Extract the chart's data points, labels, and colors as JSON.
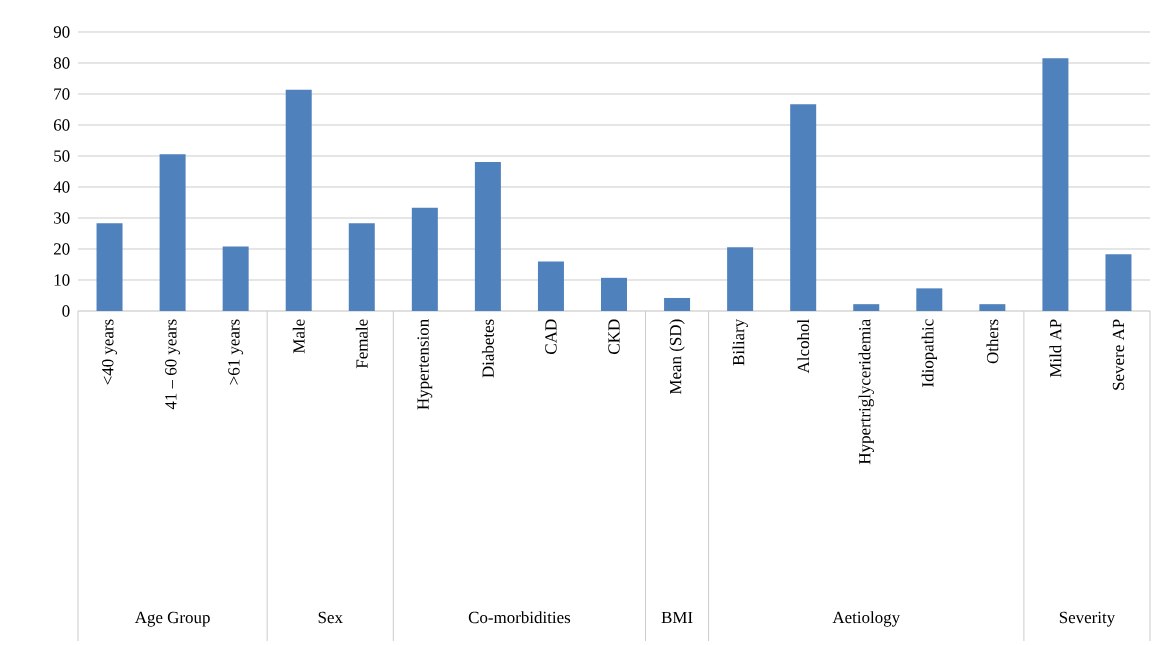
{
  "chart_data": {
    "type": "bar",
    "categories": [
      "<40 years",
      "41 – 60 years",
      ">61 years",
      "Male",
      "Female",
      "Hypertension",
      "Diabetes",
      "CAD",
      "CKD",
      "Mean (SD)",
      "Biliary",
      "Alcohol",
      "Hypertriglyceridemia",
      "Idiopathic",
      "Others",
      "Mild AP",
      "Severe AP"
    ],
    "values": [
      28.3,
      50.6,
      20.8,
      71.4,
      28.3,
      33.3,
      48.1,
      16,
      10.7,
      4.2,
      20.6,
      66.7,
      2.2,
      7.3,
      2.2,
      81.5,
      18.3
    ],
    "color": "#4f81bd",
    "ylim": [
      0,
      90
    ],
    "yticks": [
      0,
      10,
      20,
      30,
      40,
      50,
      60,
      70,
      80,
      90
    ],
    "grid": "y",
    "annotations": [
      "Age Group",
      "Sex",
      "Co-morbidities",
      "BMI",
      "Aetiology",
      "Severity"
    ]
  }
}
